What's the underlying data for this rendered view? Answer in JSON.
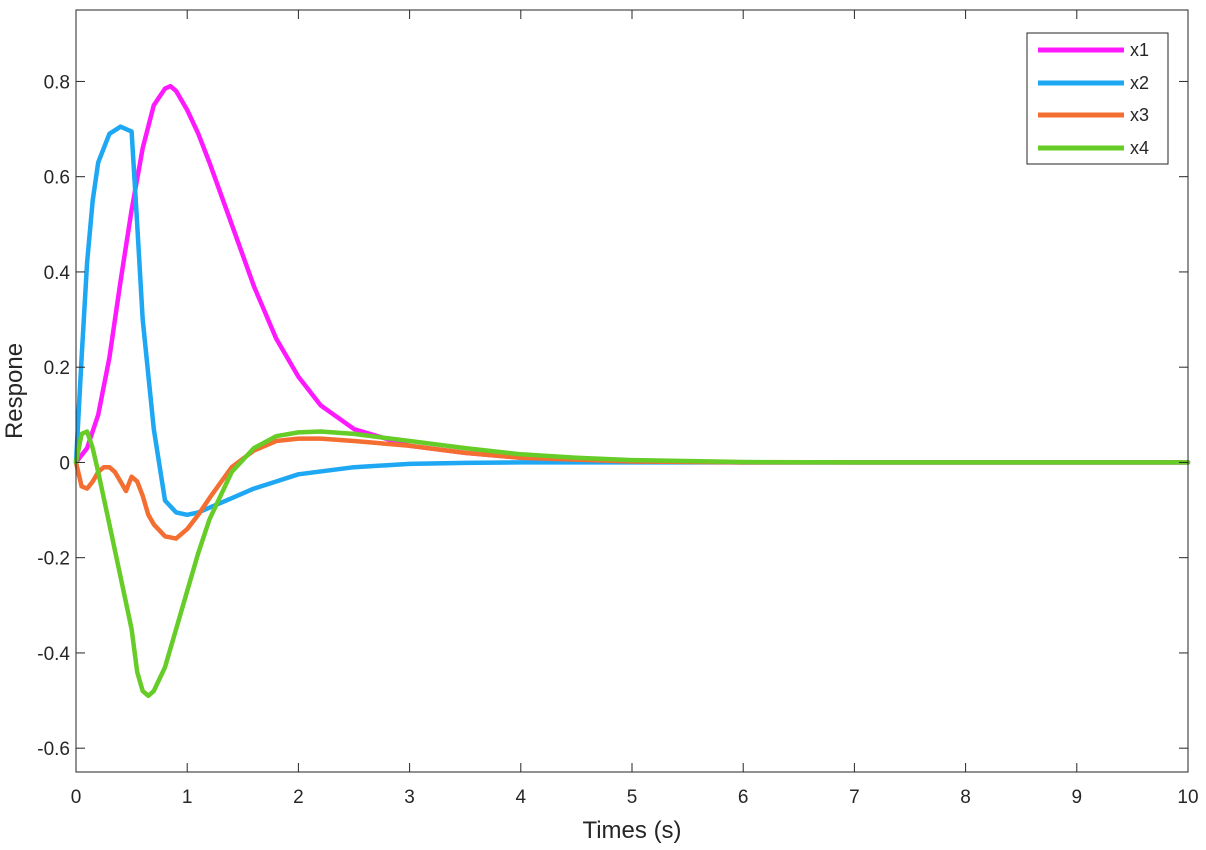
{
  "chart_data": {
    "type": "line",
    "xlabel": "Times (s)",
    "ylabel": "Respone",
    "xlim": [
      0,
      10
    ],
    "ylim": [
      -0.65,
      0.95
    ],
    "xticks": [
      0,
      1,
      2,
      3,
      4,
      5,
      6,
      7,
      8,
      9,
      10
    ],
    "xtick_labels": [
      "0",
      "1",
      "2",
      "3",
      "4",
      "5",
      "6",
      "7",
      "8",
      "9",
      "10"
    ],
    "yticks": [
      -0.6,
      -0.4,
      -0.2,
      0,
      0.2,
      0.4,
      0.6,
      0.8
    ],
    "ytick_labels": [
      "-0.6",
      "-0.4",
      "-0.2",
      "0",
      "0.2",
      "0.4",
      "0.6",
      "0.8"
    ],
    "grid": false,
    "legend_position": "top-right",
    "series": [
      {
        "name": "x1",
        "color": "#ff19ff",
        "x": [
          0,
          0.1,
          0.2,
          0.3,
          0.4,
          0.5,
          0.6,
          0.7,
          0.8,
          0.85,
          0.9,
          1.0,
          1.1,
          1.2,
          1.4,
          1.6,
          1.8,
          2.0,
          2.2,
          2.5,
          3.0,
          3.5,
          4.0,
          4.5,
          5.0,
          6.0,
          7.0,
          8.0,
          9.0,
          10.0
        ],
        "y": [
          0,
          0.03,
          0.1,
          0.22,
          0.38,
          0.53,
          0.66,
          0.75,
          0.785,
          0.79,
          0.78,
          0.74,
          0.69,
          0.63,
          0.5,
          0.37,
          0.26,
          0.18,
          0.12,
          0.07,
          0.035,
          0.02,
          0.01,
          0.005,
          0.002,
          0,
          0,
          0,
          0,
          0
        ]
      },
      {
        "name": "x2",
        "color": "#1ea7f2",
        "x": [
          0,
          0.05,
          0.1,
          0.15,
          0.2,
          0.3,
          0.4,
          0.45,
          0.5,
          0.55,
          0.6,
          0.7,
          0.8,
          0.9,
          1.0,
          1.1,
          1.2,
          1.4,
          1.6,
          1.8,
          2.0,
          2.5,
          3.0,
          3.5,
          4.0,
          5.0,
          6.0,
          10.0
        ],
        "y": [
          0,
          0.22,
          0.42,
          0.55,
          0.63,
          0.69,
          0.705,
          0.7,
          0.695,
          0.5,
          0.3,
          0.07,
          -0.08,
          -0.105,
          -0.11,
          -0.105,
          -0.095,
          -0.075,
          -0.055,
          -0.04,
          -0.025,
          -0.01,
          -0.003,
          -0.001,
          0,
          0,
          0,
          0
        ]
      },
      {
        "name": "x3",
        "color": "#f46e32",
        "x": [
          0,
          0.05,
          0.1,
          0.15,
          0.2,
          0.25,
          0.3,
          0.35,
          0.4,
          0.45,
          0.5,
          0.55,
          0.6,
          0.65,
          0.7,
          0.8,
          0.9,
          1.0,
          1.1,
          1.2,
          1.4,
          1.6,
          1.8,
          2.0,
          2.2,
          2.5,
          3.0,
          3.5,
          4.0,
          5.0,
          6.0,
          10.0
        ],
        "y": [
          0,
          -0.05,
          -0.055,
          -0.04,
          -0.02,
          -0.01,
          -0.01,
          -0.02,
          -0.04,
          -0.06,
          -0.03,
          -0.04,
          -0.07,
          -0.11,
          -0.13,
          -0.155,
          -0.16,
          -0.14,
          -0.11,
          -0.075,
          -0.01,
          0.025,
          0.045,
          0.05,
          0.05,
          0.045,
          0.035,
          0.02,
          0.01,
          0.002,
          0,
          0
        ]
      },
      {
        "name": "x4",
        "color": "#66cc27",
        "x": [
          0,
          0.05,
          0.1,
          0.15,
          0.2,
          0.3,
          0.4,
          0.5,
          0.55,
          0.6,
          0.65,
          0.7,
          0.8,
          0.9,
          1.0,
          1.1,
          1.2,
          1.4,
          1.6,
          1.8,
          2.0,
          2.2,
          2.5,
          3.0,
          3.5,
          4.0,
          4.5,
          5.0,
          6.0,
          7.0,
          10.0
        ],
        "y": [
          0,
          0.06,
          0.065,
          0.03,
          -0.02,
          -0.13,
          -0.24,
          -0.35,
          -0.44,
          -0.48,
          -0.49,
          -0.48,
          -0.43,
          -0.35,
          -0.27,
          -0.19,
          -0.12,
          -0.02,
          0.03,
          0.055,
          0.063,
          0.065,
          0.06,
          0.045,
          0.03,
          0.017,
          0.01,
          0.005,
          0.001,
          0,
          0
        ]
      }
    ]
  }
}
